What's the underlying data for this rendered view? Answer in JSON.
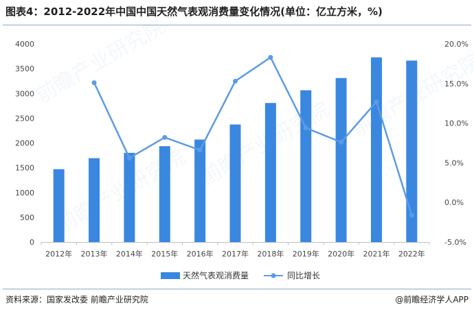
{
  "title": "图表4：2012-2022年中国中国天然气表观消费量变化情况(单位：亿立方米，%)",
  "source": "资料来源：国家发改委 前瞻产业研究院",
  "brand": "@前瞻经济学人APP",
  "chart_data": {
    "type": "bar",
    "categories": [
      "2012年",
      "2013年",
      "2014年",
      "2015年",
      "2016年",
      "2017年",
      "2018年",
      "2019年",
      "2020年",
      "2021年",
      "2022年"
    ],
    "series": [
      {
        "name": "天然气表观消费量",
        "type": "bar",
        "axis": "left",
        "color": "#3a87e0",
        "values": [
          1471,
          1693,
          1801,
          1935,
          2069,
          2373,
          2807,
          3064,
          3311,
          3728,
          3663
        ]
      },
      {
        "name": "同比增长",
        "type": "line",
        "axis": "right",
        "color": "#5b9be6",
        "values": [
          null,
          15.1,
          5.6,
          8.2,
          6.6,
          15.3,
          18.3,
          9.4,
          7.6,
          12.7,
          -1.6
        ]
      }
    ],
    "y_left": {
      "min": 0,
      "max": 4000,
      "ticks": [
        "0",
        "500",
        "1000",
        "1500",
        "2000",
        "2500",
        "3000",
        "3500",
        "4000"
      ]
    },
    "y_right": {
      "min": -5,
      "max": 20,
      "ticks": [
        "-5.0%",
        "0.0%",
        "5.0%",
        "10.0%",
        "15.0%",
        "20.0%"
      ]
    },
    "legend_position": "bottom-center",
    "grid": false
  }
}
